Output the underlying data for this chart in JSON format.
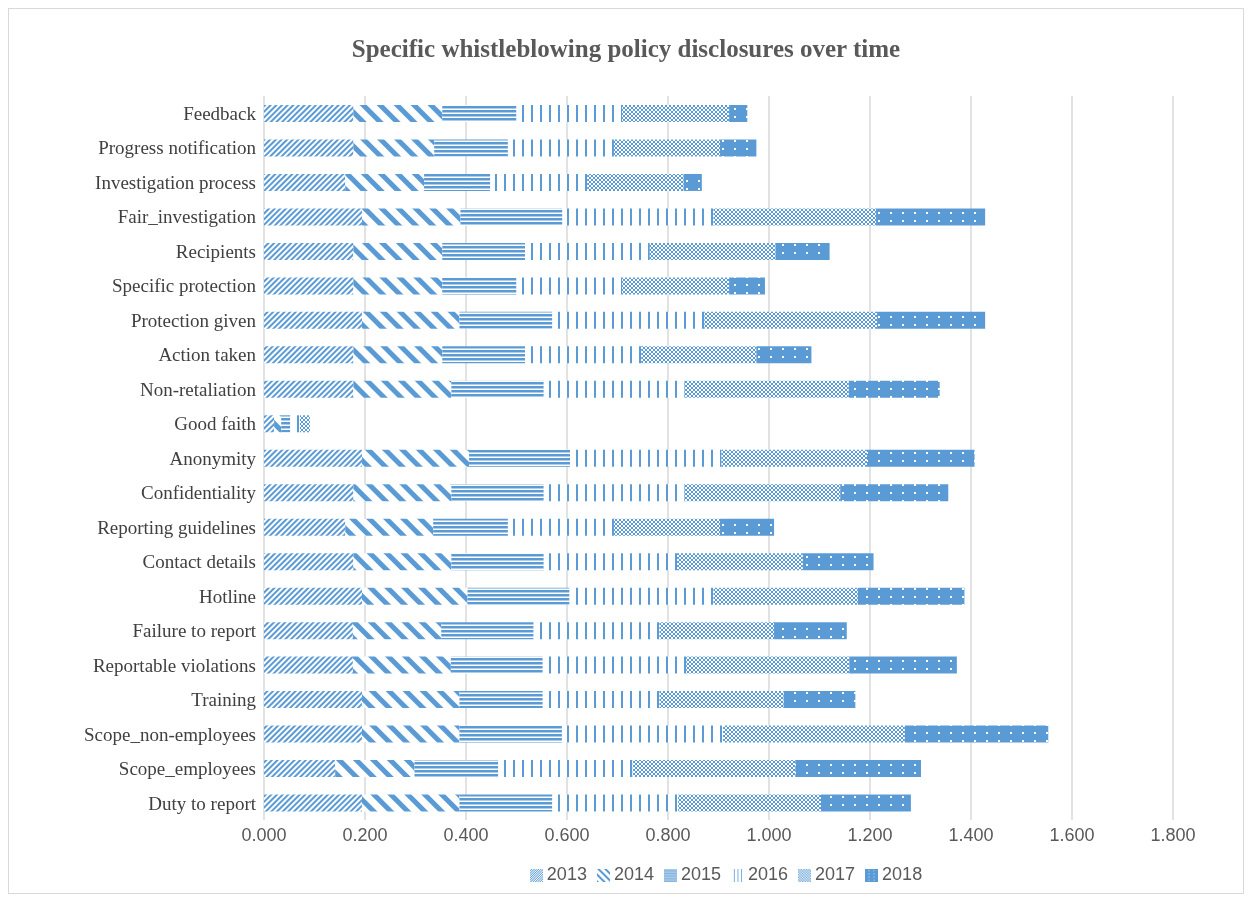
{
  "chart_data": {
    "type": "bar",
    "orientation": "horizontal",
    "stacked": true,
    "title": "Specific whistleblowing policy disclosures over time",
    "categories": [
      "Feedback",
      "Progress notification",
      "Investigation process",
      "Fair_investigation",
      "Recipients",
      "Specific protection",
      "Protection given",
      "Action taken",
      "Non-retaliation",
      "Good faith",
      "Anonymity",
      "Confidentiality",
      "Reporting guidelines",
      "Contact details",
      "Hotline",
      "Failure to report",
      "Reportable violations",
      "Training",
      "Scope_non-employees",
      "Scope_employees",
      "Duty to report"
    ],
    "series": [
      {
        "name": "2013",
        "color": "#5b9bd5",
        "values": [
          0.177,
          0.177,
          0.161,
          0.194,
          0.177,
          0.177,
          0.194,
          0.177,
          0.177,
          0.02,
          0.194,
          0.177,
          0.161,
          0.177,
          0.194,
          0.176,
          0.176,
          0.194,
          0.194,
          0.141,
          0.194
        ]
      },
      {
        "name": "2014",
        "color": "#5b9bd5",
        "values": [
          0.176,
          0.16,
          0.156,
          0.195,
          0.176,
          0.176,
          0.193,
          0.176,
          0.194,
          0.014,
          0.212,
          0.194,
          0.174,
          0.194,
          0.209,
          0.175,
          0.194,
          0.193,
          0.193,
          0.157,
          0.193
        ]
      },
      {
        "name": "2015",
        "color": "#5b9bd5",
        "values": [
          0.147,
          0.146,
          0.131,
          0.202,
          0.164,
          0.147,
          0.184,
          0.164,
          0.183,
          0.018,
          0.2,
          0.183,
          0.148,
          0.183,
          0.202,
          0.183,
          0.182,
          0.165,
          0.203,
          0.166,
          0.184
        ]
      },
      {
        "name": "2016",
        "color": "#5b9bd5",
        "values": [
          0.209,
          0.21,
          0.192,
          0.299,
          0.247,
          0.209,
          0.301,
          0.23,
          0.279,
          0.019,
          0.3,
          0.279,
          0.21,
          0.264,
          0.285,
          0.249,
          0.284,
          0.231,
          0.319,
          0.266,
          0.249
        ]
      },
      {
        "name": "2017",
        "color": "#5b9bd5",
        "values": [
          0.212,
          0.21,
          0.191,
          0.322,
          0.249,
          0.212,
          0.342,
          0.228,
          0.325,
          0.02,
          0.288,
          0.308,
          0.21,
          0.249,
          0.286,
          0.227,
          0.323,
          0.246,
          0.36,
          0.322,
          0.283
        ]
      },
      {
        "name": "2018",
        "color": "#5b9bd5",
        "values": [
          0.036,
          0.072,
          0.036,
          0.216,
          0.107,
          0.071,
          0.214,
          0.109,
          0.18,
          0,
          0.213,
          0.214,
          0.107,
          0.14,
          0.211,
          0.144,
          0.213,
          0.142,
          0.284,
          0.249,
          0.178
        ]
      }
    ],
    "xlim": [
      0,
      1.8
    ],
    "xticks": [
      {
        "value": 0,
        "label": "0.000"
      },
      {
        "value": 0.2,
        "label": "0.200"
      },
      {
        "value": 0.4,
        "label": "0.400"
      },
      {
        "value": 0.6,
        "label": "0.600"
      },
      {
        "value": 0.8,
        "label": "0.800"
      },
      {
        "value": 1,
        "label": "1.000"
      },
      {
        "value": 1.2,
        "label": "1.200"
      },
      {
        "value": 1.4,
        "label": "1.400"
      },
      {
        "value": 1.6,
        "label": "1.600"
      },
      {
        "value": 1.8,
        "label": "1.800"
      }
    ],
    "grid": "x",
    "legend": "bottom"
  }
}
